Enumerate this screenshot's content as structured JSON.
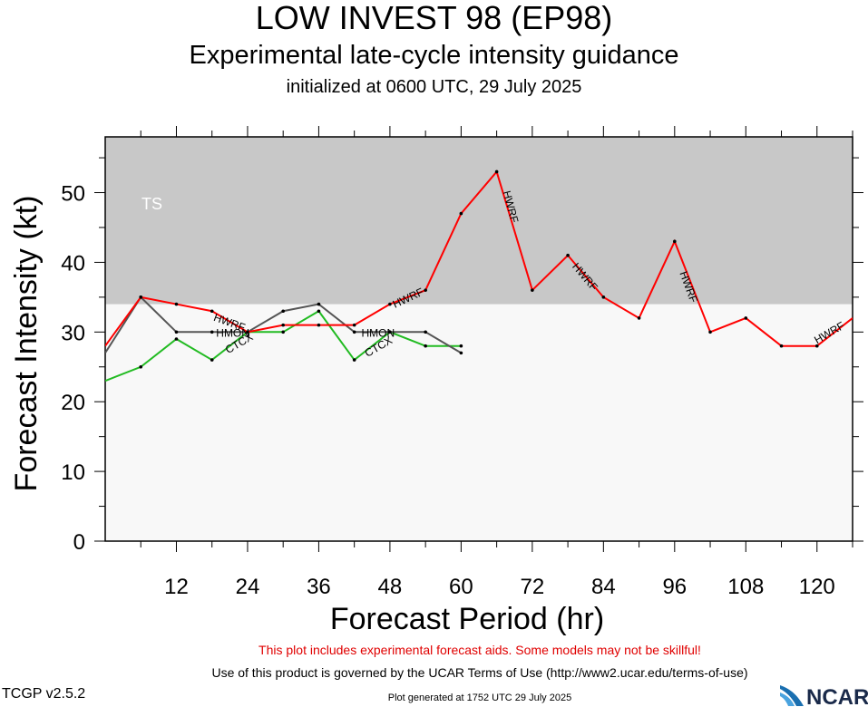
{
  "title": "LOW INVEST 98 (EP98)",
  "subtitle": "Experimental late-cycle intensity guidance",
  "initialized": "initialized at 0600 UTC, 29 July 2025",
  "warning": "This plot includes experimental forecast aids. Some models may not be skillful!",
  "terms": "Use of this product is governed by the UCAR Terms of Use (http://www2.ucar.edu/terms-of-use)",
  "version": "TCGP v2.5.2",
  "generated": "Plot generated at 1752 UTC   29 July 2025",
  "logo_text": "NCAR",
  "colors": {
    "ts_band": "#c8c8c8",
    "below_band": "#f8f8f8",
    "HWRF": "#ff0000",
    "HMON": "#555555",
    "CTCX": "#22bb22"
  },
  "chart_data": {
    "type": "line",
    "xlabel": "Forecast Period (hr)",
    "ylabel": "Forecast Intensity (kt)",
    "xlim": [
      0,
      126
    ],
    "ylim": [
      0,
      58
    ],
    "xticks": [
      12,
      24,
      36,
      48,
      60,
      72,
      84,
      96,
      108,
      120
    ],
    "yticks": [
      0,
      10,
      20,
      30,
      40,
      50
    ],
    "bands": [
      {
        "label": "TS",
        "from": 34,
        "to": 58
      }
    ],
    "series": [
      {
        "name": "HWRF",
        "x": [
          0,
          6,
          12,
          18,
          24,
          30,
          36,
          42,
          48,
          54,
          60,
          66,
          72,
          78,
          84,
          90,
          96,
          102,
          108,
          114,
          120,
          126
        ],
        "values": [
          28,
          35,
          34,
          33,
          30,
          31,
          31,
          31,
          34,
          36,
          47,
          53,
          36,
          41,
          35,
          32,
          43,
          30,
          32,
          28,
          28,
          32
        ]
      },
      {
        "name": "HMON",
        "x": [
          0,
          6,
          12,
          18,
          24,
          30,
          36,
          42,
          48,
          54,
          60
        ],
        "values": [
          27,
          35,
          30,
          30,
          30,
          33,
          34,
          30,
          30,
          30,
          27
        ]
      },
      {
        "name": "CTCX",
        "x": [
          0,
          6,
          12,
          18,
          24,
          30,
          36,
          42,
          48,
          54,
          60
        ],
        "values": [
          23,
          25,
          29,
          26,
          30,
          30,
          33,
          26,
          30,
          28,
          28
        ]
      }
    ],
    "labels": [
      {
        "series": "HWRF",
        "text": "HWRF",
        "x": 21,
        "value": 31.5,
        "angle": 20
      },
      {
        "series": "HWRF",
        "text": "HWRF",
        "x": 51,
        "value": 35,
        "angle": -25
      },
      {
        "series": "HWRF",
        "text": "HWRF",
        "x": 68.5,
        "value": 48,
        "angle": 75
      },
      {
        "series": "HWRF",
        "text": "HWRF",
        "x": 81,
        "value": 38,
        "angle": 50
      },
      {
        "series": "HWRF",
        "text": "HWRF",
        "x": 98.5,
        "value": 36.5,
        "angle": 70
      },
      {
        "series": "HWRF",
        "text": "HWRF",
        "x": 122,
        "value": 30,
        "angle": -30
      },
      {
        "series": "HMON",
        "text": "HMON",
        "x": 21.5,
        "value": 30,
        "angle": 0
      },
      {
        "series": "HMON",
        "text": "HMON",
        "x": 46,
        "value": 30,
        "angle": 0
      },
      {
        "series": "CTCX",
        "text": "CTCX",
        "x": 22.5,
        "value": 28.5,
        "angle": -30
      },
      {
        "series": "CTCX",
        "text": "CTCX",
        "x": 46,
        "value": 28,
        "angle": -30
      }
    ]
  }
}
